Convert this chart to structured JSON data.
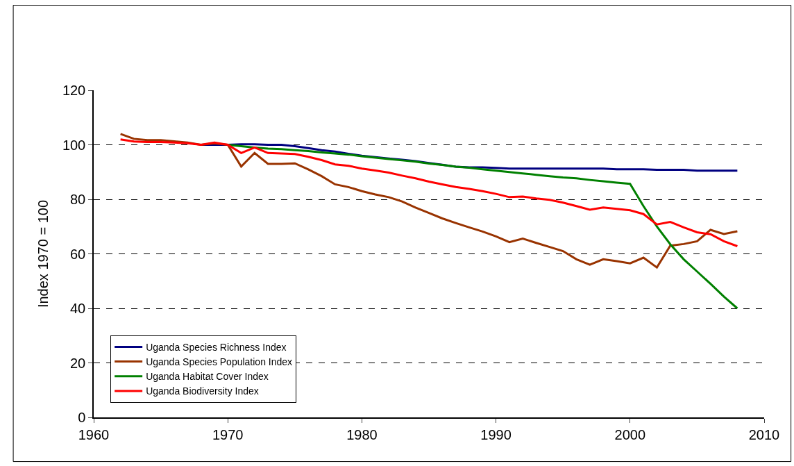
{
  "chart_data": {
    "type": "line",
    "ylabel": "Index 1970 = 100",
    "xlim": [
      1960,
      2010
    ],
    "xticks": [
      1960,
      1970,
      1980,
      1990,
      2000,
      2010
    ],
    "ylim": [
      0,
      120
    ],
    "yticks": [
      0,
      20,
      40,
      60,
      80,
      100,
      120
    ],
    "grid": "y",
    "legend": "bottom left",
    "marker": "none",
    "line_style": "solid",
    "series": [
      {
        "name": "Uganda Species Richness Index",
        "color": "#000080",
        "x": [
          1968,
          1969,
          1970,
          1971,
          1972,
          1973,
          1974,
          1975,
          1976,
          1977,
          1978,
          1979,
          1980,
          1981,
          1982,
          1983,
          1984,
          1985,
          1986,
          1987,
          1988,
          1989,
          1990,
          1991,
          1992,
          1993,
          1994,
          1995,
          1996,
          1997,
          1998,
          1999,
          2000,
          2001,
          2002,
          2003,
          2004,
          2005,
          2006,
          2007,
          2008
        ],
        "values": [
          100,
          100,
          100,
          100.2,
          100.2,
          100,
          100,
          99.5,
          98.8,
          98,
          97.5,
          96.7,
          96,
          95.5,
          95,
          94.5,
          94,
          93.3,
          92.7,
          92,
          91.7,
          91.7,
          91.5,
          91.3,
          91.3,
          91.3,
          91.3,
          91.3,
          91.3,
          91.3,
          91.3,
          91,
          91,
          91,
          90.8,
          90.8,
          90.8,
          90.5,
          90.5,
          90.5,
          90.5
        ]
      },
      {
        "name": "Uganda Species Population Index",
        "color": "#993300",
        "x": [
          1962,
          1963,
          1964,
          1965,
          1966,
          1967,
          1968,
          1969,
          1970,
          1971,
          1972,
          1973,
          1974,
          1975,
          1976,
          1977,
          1978,
          1979,
          1980,
          1981,
          1982,
          1983,
          1984,
          1985,
          1986,
          1987,
          1988,
          1989,
          1990,
          1991,
          1992,
          1993,
          1994,
          1995,
          1996,
          1997,
          1998,
          1999,
          2000,
          2001,
          2002,
          2003,
          2004,
          2005,
          2006,
          2007,
          2008
        ],
        "values": [
          104,
          102.2,
          101.7,
          101.7,
          101.3,
          100.8,
          100,
          100.5,
          100,
          92,
          97,
          93,
          93,
          93.2,
          91,
          88.5,
          85.5,
          84.5,
          83,
          81.8,
          80.8,
          79.2,
          77,
          75,
          73,
          71.3,
          69.7,
          68.2,
          66.4,
          64.3,
          65.6,
          64,
          62.5,
          61,
          58,
          56,
          58,
          57.3,
          56.5,
          58.6,
          55,
          63,
          63.6,
          64.6,
          68.8,
          67.3,
          68.3
        ]
      },
      {
        "name": "Uganda Habitat Cover Index",
        "color": "#008000",
        "x": [
          1970,
          1971,
          1972,
          1973,
          1974,
          1975,
          1976,
          1977,
          1978,
          1979,
          1980,
          1981,
          1982,
          1983,
          1984,
          1985,
          1986,
          1987,
          1988,
          1989,
          1990,
          1991,
          1992,
          1993,
          1994,
          1995,
          1996,
          1997,
          1998,
          1999,
          2000,
          2001,
          2002,
          2003,
          2004,
          2005,
          2006,
          2007,
          2008
        ],
        "values": [
          100,
          99.5,
          99,
          98.6,
          98.4,
          98,
          97.7,
          97.2,
          96.8,
          96.4,
          95.8,
          95.3,
          94.8,
          94.3,
          93.8,
          93.1,
          92.6,
          92,
          91.6,
          91,
          90.5,
          90,
          89.5,
          89,
          88.5,
          88,
          87.7,
          87.1,
          86.6,
          86.1,
          85.7,
          77.5,
          70,
          63.5,
          58,
          53.5,
          49,
          44.3,
          40
        ]
      },
      {
        "name": "Uganda Biodiversity Index",
        "color": "#ff0000",
        "x": [
          1962,
          1963,
          1964,
          1965,
          1966,
          1967,
          1968,
          1969,
          1970,
          1971,
          1972,
          1973,
          1974,
          1975,
          1976,
          1977,
          1978,
          1979,
          1980,
          1981,
          1982,
          1983,
          1984,
          1985,
          1986,
          1987,
          1988,
          1989,
          1990,
          1991,
          1992,
          1993,
          1994,
          1995,
          1996,
          1997,
          1998,
          1999,
          2000,
          2001,
          2002,
          2003,
          2004,
          2005,
          2006,
          2007,
          2008
        ],
        "values": [
          102,
          101.2,
          101,
          101,
          100.8,
          100.6,
          100,
          100.8,
          100,
          97,
          99,
          97,
          96.8,
          96.6,
          95.6,
          94.4,
          92.8,
          92.3,
          91.3,
          90.6,
          89.8,
          88.7,
          87.7,
          86.5,
          85.5,
          84.5,
          83.8,
          83,
          82,
          80.8,
          81,
          80.3,
          79.8,
          78.8,
          77.5,
          76.2,
          77,
          76.5,
          76,
          74.6,
          70.8,
          71.7,
          69.7,
          67.9,
          67.2,
          64.6,
          62.8
        ]
      }
    ]
  }
}
